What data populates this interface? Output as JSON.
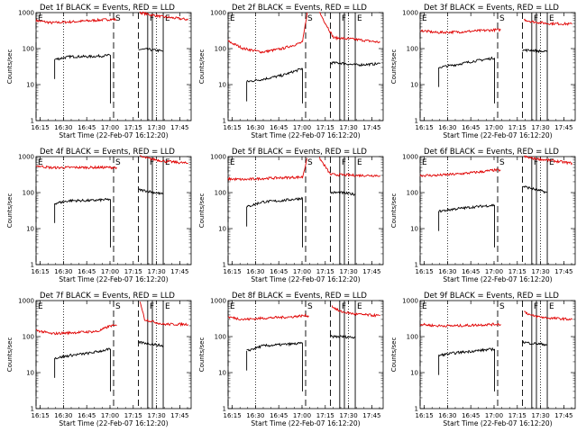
{
  "chart_data": {
    "type": "line",
    "layout": "3x3 grid of panels",
    "ylabel": "Counts/sec",
    "yscale": "log",
    "ylim": [
      1,
      1000
    ],
    "y_ticks": [
      "1",
      "10",
      "100",
      "1000"
    ],
    "xlabel": "Start Time (22-Feb-07 16:12:20)",
    "x_ticks": [
      "16:15",
      "16:30",
      "16:45",
      "17:00",
      "17:15",
      "17:30",
      "17:45"
    ],
    "x_tick_minutes": [
      2.67,
      17.67,
      32.67,
      47.67,
      62.67,
      77.67,
      92.67
    ],
    "xlim_minutes": [
      0,
      100
    ],
    "series_legend": {
      "black": "Events",
      "red": "LLD"
    },
    "markers": [
      {
        "label": "E",
        "minute": 0.0,
        "style": "dashed"
      },
      {
        "label": "S",
        "minute": 50.0,
        "style": "dashed"
      },
      {
        "label": "",
        "minute": 66.0,
        "style": "dashed"
      },
      {
        "label": "F",
        "minute": 72.0,
        "style": "solid"
      },
      {
        "label": "",
        "minute": 75.0,
        "style": "solid"
      },
      {
        "label": "E",
        "minute": 82.0,
        "style": "solid"
      }
    ],
    "dotted_lines_minutes": [
      17.67,
      77.67
    ],
    "panels": [
      {
        "title": "Det 1f BLACK = Events, RED = LLD",
        "series": [
          {
            "name": "LLD",
            "color": "#e00000",
            "segments": [
              [
                [
                  0,
                  600
                ],
                [
                  10,
                  520
                ],
                [
                  25,
                  560
                ],
                [
                  48,
                  650
                ],
                [
                  52,
                  640
                ]
              ],
              [
                [
                  67,
                  1000
                ],
                [
                  72,
                  900
                ],
                [
                  82,
                  760
                ],
                [
                  98,
                  640
                ]
              ]
            ]
          },
          {
            "name": "Events",
            "color": "#000000",
            "segments": [
              [
                [
                  12,
                  50
                ],
                [
                  22,
                  60
                ],
                [
                  35,
                  60
                ],
                [
                  48,
                  65
                ]
              ],
              [
                [
                  66,
                  95
                ],
                [
                  72,
                  95
                ],
                [
                  82,
                  85
                ]
              ]
            ]
          }
        ]
      },
      {
        "title": "Det 2f BLACK = Events, RED = LLD",
        "series": [
          {
            "name": "LLD",
            "color": "#e00000",
            "segments": [
              [
                [
                  0,
                  160
                ],
                [
                  10,
                  100
                ],
                [
                  22,
                  80
                ],
                [
                  35,
                  100
                ],
                [
                  48,
                  150
                ],
                [
                  51,
                  1000
                ]
              ],
              [
                [
                  59,
                  1000
                ],
                [
                  68,
                  200
                ],
                [
                  82,
                  180
                ],
                [
                  98,
                  150
                ]
              ]
            ]
          },
          {
            "name": "Events",
            "color": "#000000",
            "segments": [
              [
                [
                  12,
                  12
                ],
                [
                  22,
                  14
                ],
                [
                  35,
                  18
                ],
                [
                  48,
                  28
                ]
              ],
              [
                [
                  66,
                  40
                ],
                [
                  72,
                  40
                ],
                [
                  82,
                  35
                ],
                [
                  98,
                  38
                ]
              ]
            ]
          }
        ]
      },
      {
        "title": "Det 3f BLACK = Events, RED = LLD",
        "series": [
          {
            "name": "LLD",
            "color": "#e00000",
            "segments": [
              [
                [
                  0,
                  320
                ],
                [
                  10,
                  280
                ],
                [
                  25,
                  290
                ],
                [
                  48,
                  330
                ],
                [
                  52,
                  330
                ]
              ],
              [
                [
                  67,
                  640
                ],
                [
                  72,
                  560
                ],
                [
                  82,
                  500
                ],
                [
                  98,
                  480
                ]
              ]
            ]
          },
          {
            "name": "Events",
            "color": "#000000",
            "segments": [
              [
                [
                  12,
                  30
                ],
                [
                  22,
                  35
                ],
                [
                  35,
                  45
                ],
                [
                  48,
                  55
                ]
              ],
              [
                [
                  66,
                  90
                ],
                [
                  72,
                  90
                ],
                [
                  82,
                  80
                ]
              ]
            ]
          }
        ]
      },
      {
        "title": "Det 4f BLACK = Events, RED = LLD",
        "series": [
          {
            "name": "LLD",
            "color": "#e00000",
            "segments": [
              [
                [
                  0,
                  560
                ],
                [
                  10,
                  490
                ],
                [
                  25,
                  500
                ],
                [
                  48,
                  500
                ],
                [
                  52,
                  500
                ]
              ],
              [
                [
                  67,
                  1000
                ],
                [
                  72,
                  900
                ],
                [
                  82,
                  750
                ],
                [
                  98,
                  650
                ]
              ]
            ]
          },
          {
            "name": "Events",
            "color": "#000000",
            "segments": [
              [
                [
                  12,
                  50
                ],
                [
                  22,
                  60
                ],
                [
                  35,
                  60
                ],
                [
                  48,
                  65
                ]
              ],
              [
                [
                  66,
                  120
                ],
                [
                  72,
                  110
                ],
                [
                  82,
                  90
                ]
              ]
            ]
          }
        ]
      },
      {
        "title": "Det 5f BLACK = Events, RED = LLD",
        "series": [
          {
            "name": "LLD",
            "color": "#e00000",
            "segments": [
              [
                [
                  0,
                  240
                ],
                [
                  10,
                  230
                ],
                [
                  25,
                  250
                ],
                [
                  48,
                  270
                ],
                [
                  51,
                  900
                ]
              ],
              [
                [
                  59,
                  900
                ],
                [
                  66,
                  320
                ],
                [
                  82,
                  300
                ],
                [
                  98,
                  300
                ]
              ]
            ]
          },
          {
            "name": "Events",
            "color": "#000000",
            "segments": [
              [
                [
                  12,
                  40
                ],
                [
                  22,
                  55
                ],
                [
                  35,
                  60
                ],
                [
                  48,
                  70
                ]
              ],
              [
                [
                  66,
                  100
                ],
                [
                  72,
                  100
                ],
                [
                  82,
                  90
                ]
              ]
            ]
          }
        ]
      },
      {
        "title": "Det 6f BLACK = Events, RED = LLD",
        "series": [
          {
            "name": "LLD",
            "color": "#e00000",
            "segments": [
              [
                [
                  0,
                  300
                ],
                [
                  10,
                  300
                ],
                [
                  25,
                  330
                ],
                [
                  40,
                  380
                ],
                [
                  48,
                  420
                ],
                [
                  52,
                  420
                ]
              ],
              [
                [
                  67,
                  1000
                ],
                [
                  72,
                  900
                ],
                [
                  82,
                  800
                ],
                [
                  98,
                  650
                ]
              ]
            ]
          },
          {
            "name": "Events",
            "color": "#000000",
            "segments": [
              [
                [
                  12,
                  30
                ],
                [
                  22,
                  35
                ],
                [
                  35,
                  40
                ],
                [
                  48,
                  45
                ]
              ],
              [
                [
                  66,
                  150
                ],
                [
                  72,
                  130
                ],
                [
                  82,
                  100
                ]
              ]
            ]
          }
        ]
      },
      {
        "title": "Det 7f BLACK = Events, RED = LLD",
        "series": [
          {
            "name": "LLD",
            "color": "#e00000",
            "segments": [
              [
                [
                  0,
                  150
                ],
                [
                  10,
                  120
                ],
                [
                  25,
                  130
                ],
                [
                  40,
                  140
                ],
                [
                  48,
                  200
                ],
                [
                  52,
                  200
                ]
              ],
              [
                [
                  67,
                  1000
                ],
                [
                  70,
                  300
                ],
                [
                  82,
                  220
                ],
                [
                  98,
                  220
                ]
              ]
            ]
          },
          {
            "name": "Events",
            "color": "#000000",
            "segments": [
              [
                [
                  12,
                  25
                ],
                [
                  22,
                  30
                ],
                [
                  35,
                  35
                ],
                [
                  48,
                  45
                ]
              ],
              [
                [
                  66,
                  70
                ],
                [
                  72,
                  65
                ],
                [
                  82,
                  55
                ]
              ]
            ]
          }
        ]
      },
      {
        "title": "Det 8f BLACK = Events, RED = LLD",
        "series": [
          {
            "name": "LLD",
            "color": "#e00000",
            "segments": [
              [
                [
                  0,
                  350
                ],
                [
                  10,
                  300
                ],
                [
                  25,
                  330
                ],
                [
                  40,
                  350
                ],
                [
                  48,
                  380
                ],
                [
                  52,
                  380
                ]
              ],
              [
                [
                  67,
                  700
                ],
                [
                  72,
                  500
                ],
                [
                  82,
                  420
                ],
                [
                  98,
                  380
                ]
              ]
            ]
          },
          {
            "name": "Events",
            "color": "#000000",
            "segments": [
              [
                [
                  12,
                  40
                ],
                [
                  22,
                  55
                ],
                [
                  35,
                  60
                ],
                [
                  48,
                  65
                ]
              ],
              [
                [
                  66,
                  100
                ],
                [
                  72,
                  100
                ],
                [
                  82,
                  95
                ]
              ]
            ]
          }
        ]
      },
      {
        "title": "Det 9f BLACK = Events, RED = LLD",
        "series": [
          {
            "name": "LLD",
            "color": "#e00000",
            "segments": [
              [
                [
                  0,
                  220
                ],
                [
                  10,
                  200
                ],
                [
                  25,
                  200
                ],
                [
                  48,
                  220
                ],
                [
                  52,
                  220
                ]
              ],
              [
                [
                  67,
                  500
                ],
                [
                  72,
                  380
                ],
                [
                  82,
                  330
                ],
                [
                  98,
                  300
                ]
              ]
            ]
          },
          {
            "name": "Events",
            "color": "#000000",
            "segments": [
              [
                [
                  12,
                  30
                ],
                [
                  22,
                  35
                ],
                [
                  35,
                  40
                ],
                [
                  48,
                  45
                ]
              ],
              [
                [
                  66,
                  70
                ],
                [
                  72,
                  65
                ],
                [
                  82,
                  60
                ]
              ]
            ]
          }
        ]
      }
    ]
  }
}
